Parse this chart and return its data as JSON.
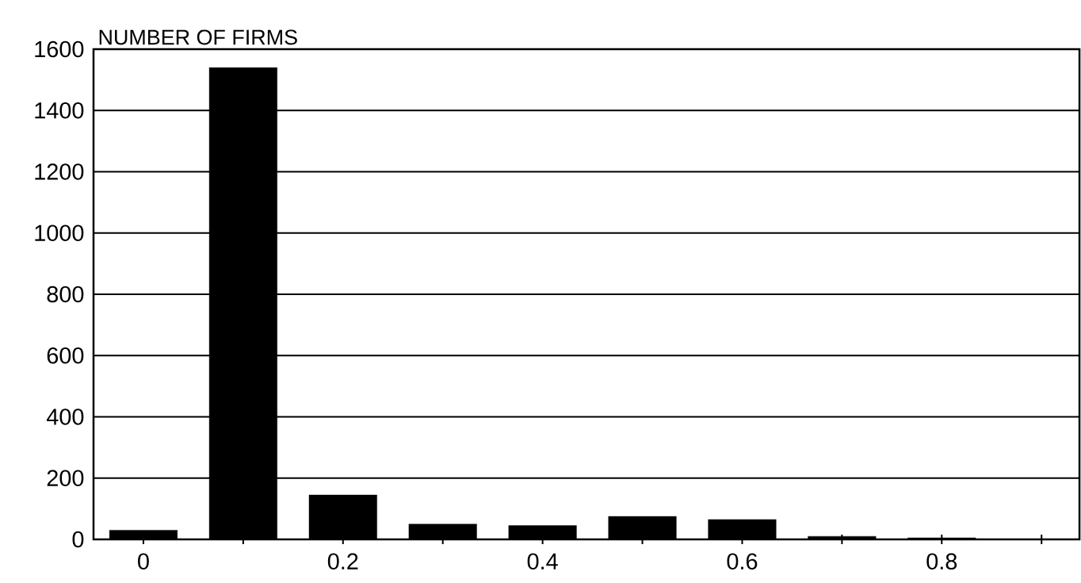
{
  "chart_data": {
    "type": "bar",
    "ylabel": "NUMBER OF FIRMS",
    "x": [
      0,
      0.1,
      0.2,
      0.3,
      0.4,
      0.5,
      0.6,
      0.7,
      0.8
    ],
    "values": [
      30,
      1540,
      145,
      50,
      45,
      75,
      65,
      10,
      5
    ],
    "color": "#000000",
    "xlim": [
      -0.05,
      0.938
    ],
    "ylim": [
      0,
      1600
    ],
    "xticks": [
      0,
      {
        "value": 0.1,
        "label": null
      },
      0.2,
      {
        "value": 0.3,
        "label": null
      },
      0.4,
      {
        "value": 0.5,
        "label": null
      },
      0.6,
      {
        "value": 0.7,
        "label": null
      },
      0.8,
      {
        "value": 0.9,
        "label": null
      }
    ],
    "yticks": [
      0,
      200,
      400,
      600,
      800,
      1000,
      1200,
      1400,
      1600
    ],
    "grid": "y"
  }
}
